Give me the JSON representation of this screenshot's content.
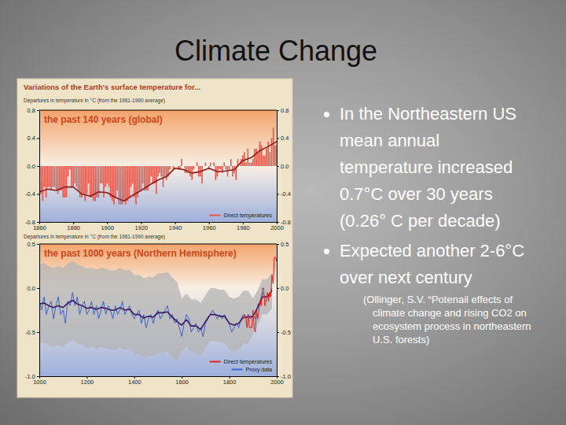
{
  "slide": {
    "title": "Climate Change",
    "bullets": [
      "In the Northeastern US mean annual temperature increased 0.7°C over 30 years (0.26° C per decade)",
      "Expected another 2-6°C over next century"
    ],
    "citation": "(Ollinger, S.V. “Potenail effects of climate change and rising CO2 on ecosystem process in northeastern U.S. forests)",
    "figure_title": "Variations of the Earth's surface temperature for..."
  },
  "chart_data": [
    {
      "type": "bar",
      "title": "the past 140 years (global)",
      "ylabel": "Departures in temperature in °C (from the 1961-1990 average)",
      "xlim": [
        1860,
        2000
      ],
      "xticks": [
        1860,
        1880,
        1900,
        1920,
        1940,
        1960,
        1980,
        2000
      ],
      "ylim": [
        -0.8,
        0.8
      ],
      "yticks": [
        -0.8,
        -0.4,
        {
          "value": 0,
          "label": "0.0"
        },
        0.4,
        0.8
      ],
      "legend": "lower right",
      "series": [
        {
          "name": "Direct temperatures",
          "type": "bar",
          "color": "#e8574a",
          "x": [
            1860,
            1861,
            1862,
            1863,
            1864,
            1865,
            1866,
            1867,
            1868,
            1869,
            1870,
            1871,
            1872,
            1873,
            1874,
            1875,
            1876,
            1877,
            1878,
            1879,
            1880,
            1881,
            1882,
            1883,
            1884,
            1885,
            1886,
            1887,
            1888,
            1889,
            1890,
            1891,
            1892,
            1893,
            1894,
            1895,
            1896,
            1897,
            1898,
            1899,
            1900,
            1901,
            1902,
            1903,
            1904,
            1905,
            1906,
            1907,
            1908,
            1909,
            1910,
            1911,
            1912,
            1913,
            1914,
            1915,
            1916,
            1917,
            1918,
            1919,
            1920,
            1921,
            1922,
            1923,
            1924,
            1925,
            1926,
            1927,
            1928,
            1929,
            1930,
            1931,
            1932,
            1933,
            1934,
            1935,
            1936,
            1937,
            1938,
            1939,
            1940,
            1941,
            1942,
            1943,
            1944,
            1945,
            1946,
            1947,
            1948,
            1949,
            1950,
            1951,
            1952,
            1953,
            1954,
            1955,
            1956,
            1957,
            1958,
            1959,
            1960,
            1961,
            1962,
            1963,
            1964,
            1965,
            1966,
            1967,
            1968,
            1969,
            1970,
            1971,
            1972,
            1973,
            1974,
            1975,
            1976,
            1977,
            1978,
            1979,
            1980,
            1981,
            1982,
            1983,
            1984,
            1985,
            1986,
            1987,
            1988,
            1989,
            1990,
            1991,
            1992,
            1993,
            1994,
            1995,
            1996,
            1997,
            1998,
            1999,
            2000
          ],
          "values": [
            -0.35,
            -0.4,
            -0.5,
            -0.3,
            -0.45,
            -0.3,
            -0.3,
            -0.35,
            -0.3,
            -0.3,
            -0.35,
            -0.4,
            -0.35,
            -0.35,
            -0.45,
            -0.45,
            -0.45,
            -0.15,
            -0.05,
            -0.3,
            -0.3,
            -0.25,
            -0.3,
            -0.35,
            -0.45,
            -0.45,
            -0.4,
            -0.5,
            -0.4,
            -0.25,
            -0.45,
            -0.45,
            -0.5,
            -0.5,
            -0.45,
            -0.45,
            -0.25,
            -0.25,
            -0.45,
            -0.3,
            -0.25,
            -0.3,
            -0.45,
            -0.5,
            -0.55,
            -0.45,
            -0.35,
            -0.55,
            -0.55,
            -0.55,
            -0.5,
            -0.55,
            -0.5,
            -0.45,
            -0.3,
            -0.25,
            -0.45,
            -0.55,
            -0.45,
            -0.35,
            -0.35,
            -0.25,
            -0.35,
            -0.35,
            -0.35,
            -0.25,
            -0.15,
            -0.25,
            -0.25,
            -0.4,
            -0.15,
            -0.1,
            -0.15,
            -0.3,
            -0.15,
            -0.2,
            -0.15,
            -0.05,
            0,
            -0.05,
            0,
            0,
            -0.05,
            -0.05,
            0.1,
            0,
            -0.1,
            -0.1,
            -0.1,
            -0.15,
            -0.2,
            -0.05,
            0,
            0.05,
            -0.15,
            -0.15,
            -0.25,
            0,
            0.05,
            0,
            -0.05,
            0.05,
            0,
            0.05,
            -0.2,
            -0.15,
            -0.05,
            -0.05,
            -0.1,
            0.05,
            -0.05,
            -0.15,
            -0.05,
            0.1,
            -0.15,
            -0.1,
            -0.2,
            0.1,
            0,
            0.1,
            0.15,
            0.2,
            0.05,
            0.25,
            0.05,
            0.05,
            0.1,
            0.25,
            0.25,
            0.2,
            0.35,
            0.3,
            0.15,
            0.15,
            0.25,
            0.35,
            0.2,
            0.4,
            0.55,
            0.3,
            0.3
          ]
        },
        {
          "type": "line",
          "color": "#8e1b1b",
          "x": [
            1860,
            1865,
            1870,
            1875,
            1880,
            1885,
            1890,
            1895,
            1900,
            1905,
            1910,
            1915,
            1920,
            1925,
            1930,
            1935,
            1940,
            1945,
            1950,
            1955,
            1960,
            1965,
            1970,
            1975,
            1980,
            1985,
            1990,
            1995,
            2000
          ],
          "values": [
            -0.37,
            -0.33,
            -0.35,
            -0.3,
            -0.3,
            -0.4,
            -0.43,
            -0.37,
            -0.38,
            -0.45,
            -0.5,
            -0.42,
            -0.35,
            -0.27,
            -0.2,
            -0.15,
            -0.03,
            -0.05,
            -0.1,
            -0.08,
            -0.03,
            -0.08,
            -0.07,
            -0.05,
            0.08,
            0.12,
            0.22,
            0.28,
            0.35
          ]
        }
      ]
    },
    {
      "type": "line",
      "title": "the past 1000 years (Northern Hemisphere)",
      "ylabel": "Departures in temperature in °C (from the 1961-1990 average)",
      "xlim": [
        1000,
        2000
      ],
      "xticks": [
        1000,
        1200,
        1400,
        1600,
        1800,
        2000
      ],
      "ylim": [
        -1,
        0.5
      ],
      "yticks": [
        {
          "value": -1,
          "label": "-1.0"
        },
        -0.5,
        {
          "value": 0,
          "label": "0.0"
        },
        0.5
      ],
      "legend": "lower right",
      "series": [
        {
          "type": "area",
          "color": "#b4b4b4",
          "x": [
            1000,
            1020,
            1040,
            1060,
            1080,
            1100,
            1120,
            1140,
            1160,
            1180,
            1200,
            1220,
            1240,
            1260,
            1280,
            1300,
            1320,
            1340,
            1360,
            1380,
            1400,
            1420,
            1440,
            1460,
            1480,
            1500,
            1520,
            1540,
            1560,
            1580,
            1600,
            1620,
            1640,
            1660,
            1680,
            1700,
            1720,
            1740,
            1760,
            1780,
            1800,
            1820,
            1840,
            1860,
            1880,
            1900,
            1920,
            1940,
            1960,
            1980
          ],
          "values": [
            0.27,
            0.28,
            0.25,
            0.23,
            0.25,
            0.23,
            0.28,
            0.31,
            0.27,
            0.25,
            0.22,
            0.23,
            0.21,
            0.23,
            0.22,
            0.2,
            0.2,
            0.23,
            0.2,
            0.21,
            0.15,
            0.15,
            0.11,
            0.13,
            0.12,
            0.17,
            0.17,
            0.18,
            0.12,
            0.07,
            -0.12,
            -0.06,
            -0.13,
            -0.13,
            -0.17,
            -0.08,
            0,
            0,
            -0.02,
            -0.02,
            -0.1,
            -0.12,
            -0.1,
            -0.03,
            -0.03,
            -0.12,
            -0.02,
            0.1,
            0.1,
            0.17
          ],
          "lower": [
            -0.63,
            -0.62,
            -0.65,
            -0.67,
            -0.65,
            -0.67,
            -0.62,
            -0.59,
            -0.63,
            -0.65,
            -0.68,
            -0.67,
            -0.69,
            -0.67,
            -0.68,
            -0.7,
            -0.7,
            -0.67,
            -0.7,
            -0.69,
            -0.75,
            -0.75,
            -0.79,
            -0.77,
            -0.78,
            -0.73,
            -0.73,
            -0.72,
            -0.78,
            -0.83,
            -0.72,
            -0.66,
            -0.73,
            -0.73,
            -0.77,
            -0.68,
            -0.6,
            -0.6,
            -0.62,
            -0.62,
            -0.7,
            -0.72,
            -0.7,
            -0.63,
            -0.63,
            -0.52,
            -0.42,
            -0.3,
            -0.3,
            -0.23
          ]
        },
        {
          "name": "Proxy data",
          "type": "line",
          "color": "#3d64c8",
          "x": [
            1000,
            1010,
            1020,
            1030,
            1040,
            1050,
            1060,
            1070,
            1080,
            1090,
            1100,
            1110,
            1120,
            1130,
            1140,
            1150,
            1160,
            1170,
            1180,
            1190,
            1200,
            1210,
            1220,
            1230,
            1240,
            1250,
            1260,
            1270,
            1280,
            1290,
            1300,
            1310,
            1320,
            1330,
            1340,
            1350,
            1360,
            1370,
            1380,
            1390,
            1400,
            1410,
            1420,
            1430,
            1440,
            1450,
            1460,
            1470,
            1480,
            1490,
            1500,
            1510,
            1520,
            1530,
            1540,
            1550,
            1560,
            1570,
            1580,
            1590,
            1600,
            1610,
            1620,
            1630,
            1640,
            1650,
            1660,
            1670,
            1680,
            1690,
            1700,
            1710,
            1720,
            1730,
            1740,
            1750,
            1760,
            1770,
            1780,
            1790,
            1800,
            1810,
            1820,
            1830,
            1840,
            1850,
            1860,
            1870,
            1880,
            1890,
            1900,
            1910,
            1920,
            1930,
            1940,
            1950,
            1960,
            1970,
            1980
          ],
          "values": [
            -0.15,
            -0.25,
            -0.1,
            -0.3,
            -0.2,
            -0.15,
            -0.35,
            -0.2,
            -0.1,
            -0.3,
            -0.25,
            -0.4,
            -0.15,
            -0.2,
            -0.05,
            -0.2,
            -0.1,
            -0.3,
            -0.2,
            -0.15,
            -0.3,
            -0.25,
            -0.15,
            -0.3,
            -0.2,
            -0.35,
            -0.25,
            -0.15,
            -0.3,
            -0.2,
            -0.25,
            -0.35,
            -0.2,
            -0.3,
            -0.25,
            -0.15,
            -0.3,
            -0.25,
            -0.2,
            -0.3,
            -0.35,
            -0.3,
            -0.25,
            -0.4,
            -0.3,
            -0.45,
            -0.35,
            -0.3,
            -0.4,
            -0.3,
            -0.25,
            -0.35,
            -0.3,
            -0.25,
            -0.2,
            -0.35,
            -0.3,
            -0.4,
            -0.35,
            -0.45,
            -0.55,
            -0.4,
            -0.3,
            -0.35,
            -0.5,
            -0.45,
            -0.4,
            -0.5,
            -0.45,
            -0.55,
            -0.4,
            -0.35,
            -0.3,
            -0.25,
            -0.3,
            -0.35,
            -0.3,
            -0.35,
            -0.3,
            -0.35,
            -0.4,
            -0.5,
            -0.45,
            -0.4,
            -0.45,
            -0.35,
            -0.3,
            -0.35,
            -0.3,
            -0.35,
            -0.3,
            -0.35,
            -0.2,
            -0.15,
            -0.05,
            -0.1,
            -0.1,
            -0.1,
            0
          ]
        },
        {
          "type": "line",
          "color": "#3a1a66",
          "x": [
            1000,
            1020,
            1040,
            1060,
            1080,
            1100,
            1120,
            1140,
            1160,
            1180,
            1200,
            1220,
            1240,
            1260,
            1280,
            1300,
            1320,
            1340,
            1360,
            1380,
            1400,
            1420,
            1440,
            1460,
            1480,
            1500,
            1520,
            1540,
            1560,
            1580,
            1600,
            1620,
            1640,
            1660,
            1680,
            1700,
            1720,
            1740,
            1760,
            1780,
            1800,
            1820,
            1840,
            1860,
            1880,
            1900,
            1920,
            1940,
            1960,
            1980
          ],
          "values": [
            -0.18,
            -0.17,
            -0.2,
            -0.22,
            -0.2,
            -0.22,
            -0.17,
            -0.14,
            -0.18,
            -0.2,
            -0.23,
            -0.22,
            -0.24,
            -0.22,
            -0.23,
            -0.25,
            -0.25,
            -0.22,
            -0.25,
            -0.24,
            -0.3,
            -0.3,
            -0.34,
            -0.32,
            -0.33,
            -0.28,
            -0.28,
            -0.27,
            -0.33,
            -0.38,
            -0.42,
            -0.36,
            -0.43,
            -0.43,
            -0.47,
            -0.38,
            -0.3,
            -0.3,
            -0.32,
            -0.32,
            -0.4,
            -0.42,
            -0.4,
            -0.33,
            -0.33,
            -0.32,
            -0.22,
            -0.1,
            -0.1,
            -0.03
          ]
        },
        {
          "name": "Direct temperatures",
          "type": "line",
          "color": "#e0231c",
          "x": [
            1860,
            1865,
            1870,
            1875,
            1880,
            1885,
            1890,
            1895,
            1900,
            1905,
            1910,
            1915,
            1920,
            1925,
            1930,
            1935,
            1940,
            1945,
            1950,
            1955,
            1960,
            1965,
            1970,
            1975,
            1980,
            1985,
            1990,
            1995,
            2000
          ],
          "values": [
            -0.35,
            -0.3,
            -0.35,
            -0.45,
            -0.3,
            -0.45,
            -0.45,
            -0.45,
            -0.25,
            -0.45,
            -0.5,
            -0.25,
            -0.35,
            -0.25,
            -0.15,
            -0.2,
            0,
            0,
            -0.2,
            -0.15,
            -0.05,
            -0.15,
            -0.05,
            -0.1,
            0.15,
            0.05,
            0.35,
            0.35,
            0.3
          ]
        }
      ]
    }
  ]
}
